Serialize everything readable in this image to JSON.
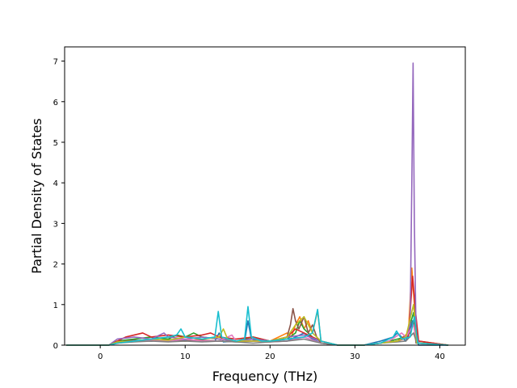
{
  "chart_data": {
    "type": "line",
    "title": "",
    "xlabel": "Frequency (THz)",
    "ylabel": "Partial Density of States",
    "xlim": [
      -4.2,
      43.0
    ],
    "ylim": [
      0,
      7.35
    ],
    "xticks": [
      0,
      10,
      20,
      30,
      40
    ],
    "yticks": [
      0,
      1,
      2,
      3,
      4,
      5,
      6,
      7
    ],
    "grid": false,
    "legend": "none",
    "series": [
      {
        "color": "#1f77b4",
        "x": [
          -4,
          1,
          2,
          4,
          6,
          8,
          10,
          12,
          13.5,
          14,
          14.5,
          16,
          17,
          17.4,
          17.8,
          19,
          22,
          23,
          24,
          25,
          26,
          28,
          31,
          33,
          34.5,
          35,
          36,
          36.8,
          37.5,
          41
        ],
        "y": [
          0,
          0,
          0.08,
          0.12,
          0.1,
          0.14,
          0.12,
          0.1,
          0.1,
          0.3,
          0.08,
          0.1,
          0.1,
          0.6,
          0.15,
          0.08,
          0.1,
          0.2,
          0.3,
          0.15,
          0.05,
          0,
          0,
          0.1,
          0.2,
          0.3,
          0.1,
          0.6,
          0,
          0
        ]
      },
      {
        "color": "#ff7f0e",
        "x": [
          -4,
          1,
          2,
          4,
          6,
          8,
          10,
          12,
          14,
          16,
          18,
          20,
          22,
          22.5,
          23,
          23.5,
          24,
          24.5,
          25,
          25.6,
          26,
          28,
          31,
          33,
          35,
          36.3,
          36.7,
          37,
          37.4,
          41
        ],
        "y": [
          0,
          0,
          0.05,
          0.1,
          0.15,
          0.12,
          0.1,
          0.15,
          0.2,
          0.1,
          0.15,
          0.1,
          0.3,
          0.2,
          0.5,
          0.7,
          0.4,
          0.6,
          0.3,
          0.85,
          0.1,
          0,
          0,
          0.05,
          0.1,
          0.3,
          1.9,
          1.0,
          0.1,
          0
        ]
      },
      {
        "color": "#2ca02c",
        "x": [
          -4,
          1,
          2,
          4,
          6,
          8,
          9,
          10,
          11,
          12,
          14,
          16,
          18,
          20,
          22,
          23,
          23.5,
          24,
          25,
          26,
          28,
          31,
          33,
          35,
          36,
          36.5,
          36.9,
          37.3,
          41
        ],
        "y": [
          0,
          0,
          0.1,
          0.15,
          0.2,
          0.15,
          0.25,
          0.2,
          0.3,
          0.2,
          0.15,
          0.1,
          0.2,
          0.1,
          0.15,
          0.3,
          0.6,
          0.4,
          0.2,
          0.1,
          0,
          0,
          0.05,
          0.15,
          0.2,
          0.5,
          0.8,
          0.1,
          0
        ]
      },
      {
        "color": "#d62728",
        "x": [
          -4,
          1,
          2,
          3,
          4,
          5,
          6,
          8,
          10,
          12,
          13,
          14,
          16,
          18,
          20,
          22,
          23,
          24,
          25,
          26,
          28,
          31,
          33,
          35,
          36.3,
          36.8,
          37.1,
          37.5,
          41
        ],
        "y": [
          0,
          0,
          0.1,
          0.2,
          0.25,
          0.3,
          0.2,
          0.25,
          0.2,
          0.25,
          0.3,
          0.2,
          0.15,
          0.2,
          0.1,
          0.2,
          0.4,
          0.3,
          0.2,
          0.1,
          0,
          0,
          0.05,
          0.1,
          0.2,
          1.7,
          0.9,
          0.1,
          0
        ]
      },
      {
        "color": "#9467bd",
        "x": [
          -4,
          1,
          2,
          4,
          6,
          7.5,
          8,
          10,
          12,
          14,
          16,
          18,
          20,
          22,
          24,
          26,
          28,
          31,
          33,
          35,
          36,
          36.5,
          36.7,
          36.85,
          37.0,
          37.2,
          37.5,
          41
        ],
        "y": [
          0,
          0,
          0.15,
          0.2,
          0.15,
          0.3,
          0.2,
          0.15,
          0.2,
          0.15,
          0.1,
          0.15,
          0.1,
          0.2,
          0.25,
          0.1,
          0,
          0,
          0.05,
          0.1,
          0.2,
          0.5,
          4.0,
          6.95,
          3.0,
          0.3,
          0.05,
          0
        ]
      },
      {
        "color": "#8c564b",
        "x": [
          -4,
          1,
          2,
          4,
          6,
          8,
          10,
          12,
          14,
          16,
          18,
          20,
          22,
          22.4,
          22.7,
          23,
          23.4,
          24,
          24.5,
          25,
          25.5,
          26,
          28,
          31,
          33,
          35,
          36.5,
          36.9,
          37.2,
          41
        ],
        "y": [
          0,
          0,
          0.08,
          0.12,
          0.1,
          0.12,
          0.1,
          0.12,
          0.1,
          0.08,
          0.1,
          0.08,
          0.2,
          0.5,
          0.9,
          0.6,
          0.4,
          0.7,
          0.3,
          0.5,
          0.2,
          0.05,
          0,
          0,
          0.05,
          0.1,
          0.3,
          0.6,
          0.05,
          0
        ]
      },
      {
        "color": "#e377c2",
        "x": [
          -4,
          1,
          2,
          4,
          6,
          8,
          10,
          12,
          14,
          15.5,
          16,
          18,
          20,
          22,
          24,
          26,
          28,
          31,
          33,
          34,
          35.5,
          36,
          36.9,
          37.3,
          41
        ],
        "y": [
          0,
          0,
          0.05,
          0.1,
          0.12,
          0.1,
          0.15,
          0.1,
          0.1,
          0.25,
          0.1,
          0.1,
          0.08,
          0.1,
          0.2,
          0.05,
          0,
          0,
          0.05,
          0.1,
          0.3,
          0.2,
          0.5,
          0.05,
          0
        ]
      },
      {
        "color": "#7f7f7f",
        "x": [
          -4,
          1,
          2,
          4,
          6,
          8,
          10,
          12,
          14,
          16,
          18,
          20,
          22,
          24,
          26,
          28,
          31,
          33,
          35,
          36,
          36.9,
          37.3,
          41
        ],
        "y": [
          0,
          0,
          0.05,
          0.08,
          0.1,
          0.08,
          0.1,
          0.08,
          0.1,
          0.08,
          0.05,
          0.08,
          0.1,
          0.15,
          0.05,
          0,
          0,
          0.05,
          0.08,
          0.1,
          0.3,
          0.05,
          0
        ]
      },
      {
        "color": "#bcbd22",
        "x": [
          -4,
          1,
          2,
          4,
          6,
          8,
          10,
          12,
          14,
          14.5,
          15,
          16,
          18,
          20,
          22,
          23,
          24,
          25,
          26,
          28,
          31,
          33,
          35,
          36,
          36.9,
          37.3,
          41
        ],
        "y": [
          0,
          0,
          0.08,
          0.1,
          0.15,
          0.12,
          0.2,
          0.15,
          0.2,
          0.4,
          0.15,
          0.1,
          0.1,
          0.1,
          0.2,
          0.5,
          0.7,
          0.3,
          0.1,
          0,
          0,
          0.05,
          0.1,
          0.2,
          1.0,
          0.05,
          0
        ]
      },
      {
        "color": "#17becf",
        "x": [
          -4,
          1,
          2,
          4,
          6,
          8,
          9,
          9.5,
          10,
          12,
          13.5,
          13.9,
          14.3,
          16,
          17,
          17.4,
          17.8,
          19,
          20,
          22,
          24,
          25,
          25.6,
          26,
          28,
          31,
          33,
          34.5,
          34.9,
          35.5,
          36.5,
          37,
          37.4,
          41
        ],
        "y": [
          0,
          0,
          0.05,
          0.1,
          0.15,
          0.2,
          0.25,
          0.4,
          0.2,
          0.15,
          0.2,
          0.83,
          0.2,
          0.1,
          0.15,
          0.95,
          0.2,
          0.1,
          0.1,
          0.15,
          0.2,
          0.3,
          0.88,
          0.1,
          0,
          0,
          0.05,
          0.2,
          0.35,
          0.15,
          0.2,
          0.7,
          0.05,
          0
        ]
      }
    ]
  }
}
